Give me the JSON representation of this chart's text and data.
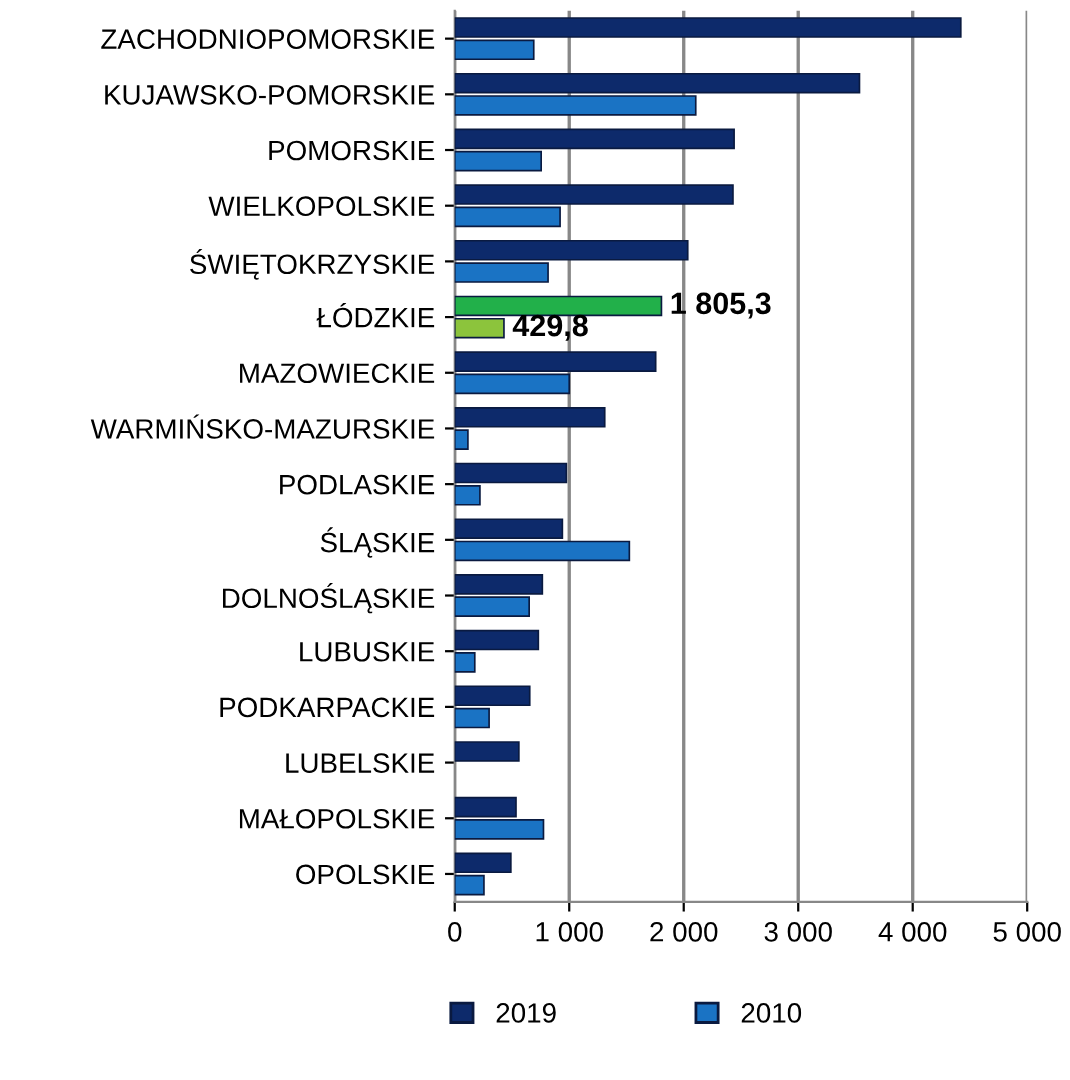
{
  "chart_data": {
    "type": "bar",
    "orientation": "horizontal",
    "categories": [
      "ZACHODNIOPOMORSKIE",
      "KUJAWSKO-POMORSKIE",
      "POMORSKIE",
      "WIELKOPOLSKIE",
      "ŚWIĘTOKRZYSKIE",
      "ŁÓDZKIE",
      "MAZOWIECKIE",
      "WARMIŃSKO-MAZURSKIE",
      "PODLASKIE",
      "ŚLĄSKIE",
      "DOLNOŚLĄSKIE",
      "LUBUSKIE",
      "PODKARPACKIE",
      "LUBELSKIE",
      "MAŁOPOLSKIE",
      "OPOLSKIE"
    ],
    "series": [
      {
        "name": "2019",
        "color": "#0d2a6b",
        "colors": [
          "#0d2a6b",
          "#0d2a6b",
          "#0d2a6b",
          "#0d2a6b",
          "#0d2a6b",
          "#22b04a",
          "#0d2a6b",
          "#0d2a6b",
          "#0d2a6b",
          "#0d2a6b",
          "#0d2a6b",
          "#0d2a6b",
          "#0d2a6b",
          "#0d2a6b",
          "#0d2a6b",
          "#0d2a6b"
        ],
        "values": [
          4420,
          3535,
          2440,
          2430,
          2035,
          1805.3,
          1755,
          1310,
          975,
          940,
          765,
          730,
          655,
          560,
          535,
          490
        ],
        "value_labels": [
          null,
          null,
          null,
          null,
          null,
          "1 805,3",
          null,
          null,
          null,
          null,
          null,
          null,
          null,
          null,
          null,
          null
        ]
      },
      {
        "name": "2010",
        "color": "#1a73c4",
        "colors": [
          "#1a73c4",
          "#1a73c4",
          "#1a73c4",
          "#1a73c4",
          "#1a73c4",
          "#8cc43c",
          "#1a73c4",
          "#1a73c4",
          "#1a73c4",
          "#1a73c4",
          "#1a73c4",
          "#1a73c4",
          "#1a73c4",
          "#1a73c4",
          "#1a73c4",
          "#1a73c4"
        ],
        "values": [
          690,
          2105,
          755,
          920,
          815,
          429.8,
          1000,
          115,
          220,
          1525,
          650,
          175,
          300,
          null,
          775,
          255
        ],
        "value_labels": [
          null,
          null,
          null,
          null,
          null,
          "429,8",
          null,
          null,
          null,
          null,
          null,
          null,
          null,
          null,
          null,
          null
        ]
      }
    ],
    "xlim": [
      0,
      5000
    ],
    "xticks": [
      0,
      {
        "value": 1000,
        "label": "1 000"
      },
      {
        "value": 2000,
        "label": "2 000"
      },
      {
        "value": 3000,
        "label": "3 000"
      },
      {
        "value": 4000,
        "label": "4 000"
      },
      {
        "value": 5000,
        "label": "5 000"
      }
    ],
    "grid": "x",
    "legend": "bottom"
  }
}
